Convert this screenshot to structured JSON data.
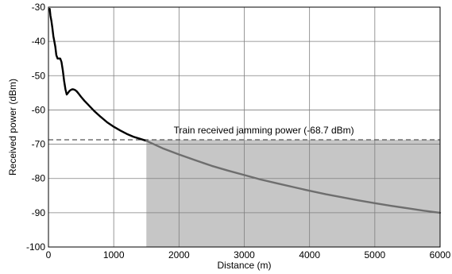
{
  "chart_data": {
    "type": "line",
    "title": "",
    "xlabel": "Distance (m)",
    "ylabel": "Received power (dBm)",
    "xlim": [
      0,
      6000
    ],
    "ylim": [
      -100,
      -30
    ],
    "xticks": [
      0,
      1000,
      2000,
      3000,
      4000,
      5000,
      6000
    ],
    "yticks": [
      -100,
      -90,
      -80,
      -70,
      -60,
      -50,
      -40,
      -30
    ],
    "grid": true,
    "series": [
      {
        "color": "#000000",
        "x": [
          20,
          30,
          45,
          60,
          75,
          90,
          105,
          120,
          140,
          160,
          180,
          200,
          220,
          240,
          260,
          280,
          300,
          320,
          340,
          360,
          380,
          400,
          430,
          460,
          500,
          550,
          600,
          700,
          800,
          900,
          1000,
          1100,
          1200,
          1300,
          1400,
          1500
        ],
        "y": [
          -30.5,
          -32.5,
          -34.0,
          -36.0,
          -38.5,
          -40.0,
          -41.5,
          -44.0,
          -45.0,
          -45.0,
          -45.0,
          -46.0,
          -48.5,
          -51.5,
          -54.0,
          -55.5,
          -55.0,
          -54.5,
          -54.2,
          -54.0,
          -54.0,
          -54.1,
          -54.5,
          -55.2,
          -56.2,
          -57.3,
          -58.3,
          -60.3,
          -62.0,
          -63.6,
          -64.9,
          -66.0,
          -67.0,
          -67.8,
          -68.4,
          -69.0
        ]
      },
      {
        "color": "#6e6e6e",
        "x": [
          1500,
          1750,
          2000,
          2250,
          2500,
          2750,
          3000,
          3250,
          3500,
          3750,
          4000,
          4250,
          4500,
          4750,
          5000,
          5250,
          5500,
          5750,
          6000
        ],
        "y": [
          -69.0,
          -71.2,
          -73.0,
          -74.7,
          -76.3,
          -77.7,
          -79.0,
          -80.3,
          -81.4,
          -82.5,
          -83.6,
          -84.6,
          -85.5,
          -86.4,
          -87.2,
          -88.0,
          -88.7,
          -89.4,
          -90.0
        ]
      }
    ],
    "reference_line": {
      "y": -68.7,
      "style": "dashed",
      "color": "#555555"
    },
    "shaded_region": {
      "x": [
        1500,
        6000
      ],
      "y": [
        -100,
        -68.7
      ],
      "color": "#c6c6c6"
    },
    "annotation": {
      "text": "Train received jamming power  (-68.7 dBm)",
      "x": 3300,
      "y": -66.8
    }
  }
}
